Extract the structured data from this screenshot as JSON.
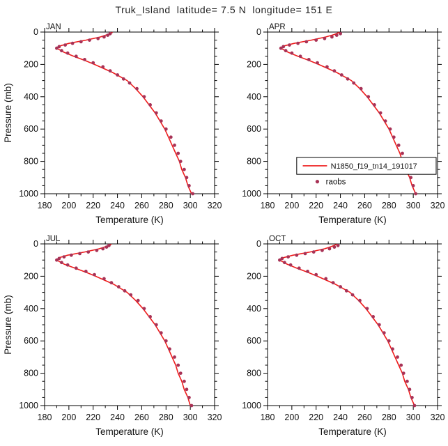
{
  "title": "Truk_Island  latitude= 7.5 N  longitude= 151 E",
  "colors": {
    "model_line": "#ee1c1c",
    "raobs_dot": "#a83256",
    "axis": "#000000"
  },
  "legend": {
    "model_label": "N1850_f19_tn14_191017",
    "raobs_label": "raobs"
  },
  "chart_data": [
    {
      "type": "line",
      "month": "JAN",
      "xlabel": "Temperature (K)",
      "ylabel": "Pressure (mb)",
      "xlim": [
        180,
        320
      ],
      "ylim": [
        1000,
        0
      ],
      "xticks": [
        180,
        200,
        220,
        240,
        260,
        280,
        300,
        320
      ],
      "yticks": [
        0,
        200,
        400,
        600,
        800,
        1000
      ],
      "xminor": 10,
      "yminor": 50,
      "grid": false,
      "series": [
        {
          "name": "N1850_f19_tn14_191017",
          "style": "line",
          "pressure": [
            2,
            15,
            30,
            50,
            70,
            85,
            100,
            125,
            150,
            175,
            200,
            250,
            300,
            350,
            400,
            450,
            500,
            550,
            600,
            650,
            700,
            750,
            800,
            850,
            900,
            950,
            1000
          ],
          "temperature": [
            236,
            232,
            226,
            214,
            200,
            193,
            190,
            196,
            204,
            213,
            221,
            236,
            248,
            255,
            261,
            266,
            271,
            275,
            279,
            282,
            285,
            288,
            291,
            293,
            296,
            298,
            301
          ]
        },
        {
          "name": "raobs",
          "style": "dots",
          "pressure": [
            10,
            20,
            30,
            40,
            50,
            60,
            70,
            80,
            90,
            100,
            115,
            130,
            150,
            170,
            190,
            215,
            240,
            265,
            290,
            315,
            350,
            400,
            450,
            500,
            550,
            600,
            650,
            700,
            750,
            800,
            850,
            900,
            950,
            1000
          ],
          "temperature": [
            234,
            232,
            229,
            224,
            217,
            210,
            203,
            197,
            192,
            190,
            194,
            199,
            206,
            213,
            220,
            228,
            234,
            240,
            245,
            250,
            256,
            262,
            267,
            272,
            276,
            280,
            284,
            287,
            290,
            292,
            295,
            297,
            299,
            302
          ]
        }
      ]
    },
    {
      "type": "line",
      "month": "APR",
      "xlabel": "Temperature (K)",
      "ylabel": "Pressure (mb)",
      "xlim": [
        180,
        320
      ],
      "ylim": [
        1000,
        0
      ],
      "xticks": [
        180,
        200,
        220,
        240,
        260,
        280,
        300,
        320
      ],
      "yticks": [
        0,
        200,
        400,
        600,
        800,
        1000
      ],
      "xminor": 10,
      "yminor": 50,
      "grid": false,
      "show_legend": true,
      "series": [
        {
          "name": "N1850_f19_tn14_191017",
          "style": "line",
          "pressure": [
            2,
            15,
            30,
            50,
            70,
            85,
            100,
            125,
            150,
            175,
            200,
            250,
            300,
            350,
            400,
            450,
            500,
            550,
            600,
            650,
            700,
            750,
            800,
            850,
            900,
            950,
            1000
          ],
          "temperature": [
            239,
            235,
            228,
            216,
            202,
            194,
            191,
            197,
            205,
            214,
            222,
            237,
            249,
            256,
            262,
            267,
            272,
            276,
            280,
            283,
            286,
            289,
            291,
            294,
            297,
            299,
            302
          ]
        },
        {
          "name": "raobs",
          "style": "dots",
          "pressure": [
            10,
            20,
            30,
            40,
            50,
            60,
            70,
            80,
            90,
            100,
            115,
            130,
            150,
            170,
            190,
            215,
            240,
            265,
            290,
            315,
            350,
            400,
            450,
            500,
            550,
            600,
            650,
            700,
            750,
            800,
            850,
            900,
            950,
            1000
          ],
          "temperature": [
            240,
            237,
            233,
            227,
            220,
            212,
            205,
            198,
            193,
            191,
            195,
            200,
            207,
            214,
            221,
            229,
            235,
            241,
            246,
            251,
            257,
            263,
            268,
            273,
            277,
            281,
            284,
            288,
            291,
            293,
            296,
            298,
            300,
            302
          ]
        }
      ]
    },
    {
      "type": "line",
      "month": "JUL",
      "xlabel": "Temperature (K)",
      "ylabel": "Pressure (mb)",
      "xlim": [
        180,
        320
      ],
      "ylim": [
        1000,
        0
      ],
      "xticks": [
        180,
        200,
        220,
        240,
        260,
        280,
        300,
        320
      ],
      "yticks": [
        0,
        200,
        400,
        600,
        800,
        1000
      ],
      "xminor": 10,
      "yminor": 50,
      "grid": false,
      "series": [
        {
          "name": "N1850_f19_tn14_191017",
          "style": "line",
          "pressure": [
            2,
            15,
            30,
            50,
            70,
            85,
            100,
            125,
            150,
            175,
            200,
            250,
            300,
            350,
            400,
            450,
            500,
            550,
            600,
            650,
            700,
            750,
            800,
            850,
            900,
            950,
            1000
          ],
          "temperature": [
            235,
            231,
            225,
            213,
            199,
            192,
            190,
            196,
            205,
            214,
            222,
            237,
            248,
            255,
            261,
            266,
            271,
            275,
            279,
            282,
            285,
            288,
            290,
            293,
            295,
            298,
            300
          ]
        },
        {
          "name": "raobs",
          "style": "dots",
          "pressure": [
            10,
            20,
            30,
            40,
            50,
            60,
            70,
            80,
            90,
            100,
            115,
            130,
            150,
            170,
            190,
            215,
            240,
            265,
            290,
            315,
            350,
            400,
            450,
            500,
            550,
            600,
            650,
            700,
            750,
            800,
            850,
            900,
            950,
            1000
          ],
          "temperature": [
            233,
            231,
            228,
            223,
            216,
            209,
            202,
            196,
            192,
            190,
            194,
            199,
            206,
            214,
            221,
            229,
            235,
            241,
            246,
            251,
            257,
            262,
            267,
            272,
            276,
            280,
            283,
            287,
            290,
            292,
            295,
            297,
            299,
            301
          ]
        }
      ]
    },
    {
      "type": "line",
      "month": "OCT",
      "xlabel": "Temperature (K)",
      "ylabel": "Pressure (mb)",
      "xlim": [
        180,
        320
      ],
      "ylim": [
        1000,
        0
      ],
      "xticks": [
        180,
        200,
        220,
        240,
        260,
        280,
        300,
        320
      ],
      "yticks": [
        0,
        200,
        400,
        600,
        800,
        1000
      ],
      "xminor": 10,
      "yminor": 50,
      "grid": false,
      "series": [
        {
          "name": "N1850_f19_tn14_191017",
          "style": "line",
          "pressure": [
            2,
            15,
            30,
            50,
            70,
            85,
            100,
            125,
            150,
            175,
            200,
            250,
            300,
            350,
            400,
            450,
            500,
            550,
            600,
            650,
            700,
            750,
            800,
            850,
            900,
            950,
            1000
          ],
          "temperature": [
            237,
            233,
            227,
            215,
            201,
            193,
            190,
            196,
            204,
            213,
            221,
            236,
            248,
            255,
            261,
            266,
            271,
            275,
            279,
            282,
            285,
            288,
            291,
            293,
            296,
            298,
            301
          ]
        },
        {
          "name": "raobs",
          "style": "dots",
          "pressure": [
            10,
            20,
            30,
            40,
            50,
            60,
            70,
            80,
            90,
            100,
            115,
            130,
            150,
            170,
            190,
            215,
            240,
            265,
            290,
            315,
            350,
            400,
            450,
            500,
            550,
            600,
            650,
            700,
            750,
            800,
            850,
            900,
            950,
            1000
          ],
          "temperature": [
            238,
            235,
            231,
            225,
            218,
            211,
            204,
            197,
            192,
            190,
            194,
            199,
            206,
            213,
            220,
            228,
            234,
            240,
            245,
            250,
            256,
            262,
            267,
            272,
            276,
            280,
            283,
            287,
            290,
            292,
            295,
            297,
            299,
            301
          ]
        }
      ]
    }
  ]
}
